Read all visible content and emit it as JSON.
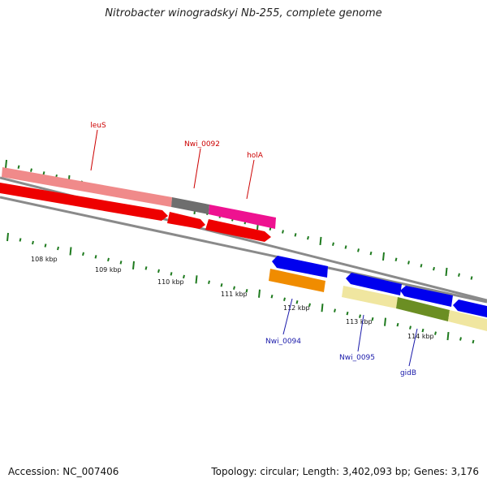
{
  "title": "Nitrobacter winogradskyi Nb-255, complete genome",
  "footer": {
    "accession": "Accession: NC_007406",
    "summary": "Topology: circular; Length: 3,402,093 bp; Genes: 3,176"
  },
  "colors": {
    "label_red": "#cc0000",
    "label_blue": "#1a1aaa",
    "tick_green": "#1e7a1e",
    "backbone": "#8a8a8a"
  },
  "scale": {
    "labels": [
      "108 kbp",
      "109 kbp",
      "110 kbp",
      "111 kbp",
      "112 kbp",
      "113 kbp",
      "114 kbp"
    ]
  },
  "genes": [
    {
      "name": "leuS",
      "color": "#f08a8a",
      "track": "outer"
    },
    {
      "name": "Nwi_0092",
      "color": "#6e6e6e",
      "track": "outer"
    },
    {
      "name": "holA",
      "color": "#ee1290",
      "track": "outer"
    },
    {
      "name": "Nwi_0094",
      "color": "#f08c00",
      "track": "inner"
    },
    {
      "name": "Nwi_0095",
      "color": "#f0e6a0",
      "track": "inner"
    },
    {
      "name": "gidB",
      "color": "#6b8e23",
      "track": "inner"
    }
  ],
  "cds_color_fwd": "#ee0000",
  "cds_color_rev": "#0000ee"
}
